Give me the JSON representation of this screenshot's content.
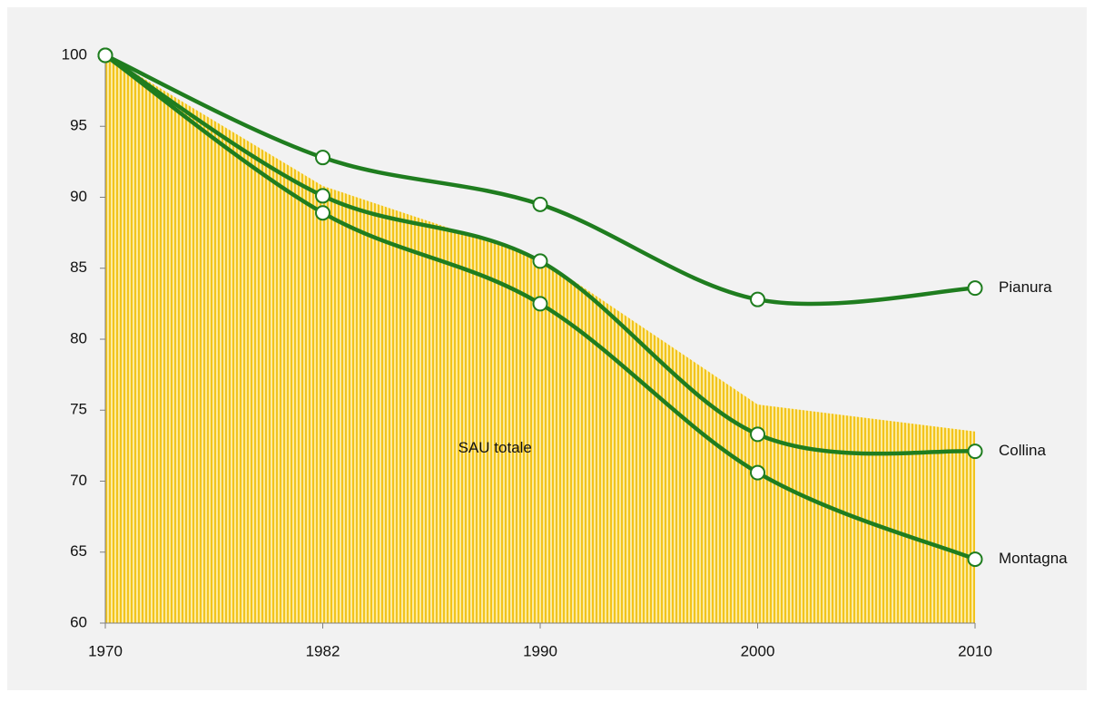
{
  "chart_data": {
    "type": "line",
    "categories": [
      "1970",
      "1982",
      "1990",
      "2000",
      "2010"
    ],
    "series": [
      {
        "name": "SAU totale",
        "type": "area",
        "color": "#f2c41c",
        "values": [
          100,
          90.8,
          85.7,
          75.4,
          73.5
        ]
      },
      {
        "name": "Pianura",
        "type": "line",
        "color": "#1f7d1f",
        "values": [
          100,
          92.8,
          89.5,
          82.8,
          83.6
        ]
      },
      {
        "name": "Collina",
        "type": "line",
        "color": "#1f7d1f",
        "values": [
          100,
          90.1,
          85.5,
          73.3,
          72.1
        ]
      },
      {
        "name": "Montagna",
        "type": "line",
        "color": "#1f7d1f",
        "values": [
          100,
          88.9,
          82.5,
          70.6,
          64.5
        ]
      }
    ],
    "ylim": [
      60,
      100
    ],
    "yticks": [
      60,
      65,
      70,
      75,
      80,
      85,
      90,
      95,
      100
    ],
    "smooth": true,
    "grid": false
  }
}
